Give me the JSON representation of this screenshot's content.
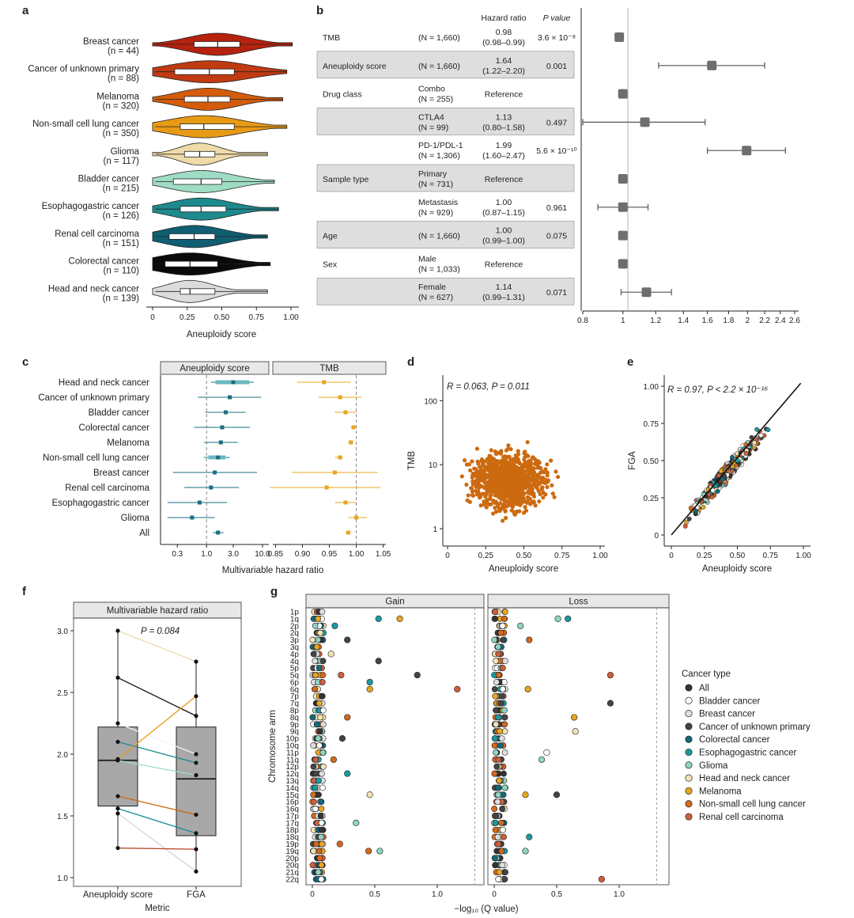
{
  "panel_labels": {
    "a": "a",
    "b": "b",
    "c": "c",
    "d": "d",
    "e": "e",
    "f": "f",
    "g": "g"
  },
  "panel_a": {
    "xlabel": "Aneuploidy score",
    "ticks": [
      "0",
      "0.25",
      "0.50",
      "0.75",
      "1.00"
    ],
    "groups": [
      {
        "name": "Breast cancer",
        "n": "(n = 44)",
        "color": "#b5220e",
        "q1": 0.3,
        "med": 0.47,
        "q3": 0.63
      },
      {
        "name": "Cancer of unknown primary",
        "n": "(n = 88)",
        "color": "#c03a12",
        "q1": 0.16,
        "med": 0.41,
        "q3": 0.59
      },
      {
        "name": "Melanoma",
        "n": "(n = 320)",
        "color": "#d35c0a",
        "q1": 0.23,
        "med": 0.4,
        "q3": 0.56
      },
      {
        "name": "Non-small cell lung cancer",
        "n": "(n = 350)",
        "color": "#e89a14",
        "q1": 0.2,
        "med": 0.37,
        "q3": 0.59
      },
      {
        "name": "Glioma",
        "n": "(n = 117)",
        "color": "#eedba8",
        "q1": 0.23,
        "med": 0.34,
        "q3": 0.45
      },
      {
        "name": "Bladder cancer",
        "n": "(n = 215)",
        "color": "#9fdcc4",
        "q1": 0.15,
        "med": 0.35,
        "q3": 0.5
      },
      {
        "name": "Esophagogastric cancer",
        "n": "(n = 126)",
        "color": "#1d8a8e",
        "q1": 0.2,
        "med": 0.35,
        "q3": 0.53
      },
      {
        "name": "Renal cell carcinoma",
        "n": "(n = 151)",
        "color": "#0f5e72",
        "q1": 0.12,
        "med": 0.3,
        "q3": 0.45
      },
      {
        "name": "Colorectal cancer",
        "n": "(n = 110)",
        "color": "#0a0a0a",
        "q1": 0.09,
        "med": 0.27,
        "q3": 0.47
      },
      {
        "name": "Head and neck cancer",
        "n": "(n = 139)",
        "color": "#dcdcdc",
        "q1": 0.2,
        "med": 0.27,
        "q3": 0.45
      }
    ]
  },
  "panel_b": {
    "col_headers": {
      "hr": "Hazard ratio",
      "p": "P value"
    },
    "rows": [
      {
        "var": "TMB",
        "sub": "",
        "n": "(N = 1,660)",
        "hr": "0.98",
        "ci": "(0.98–0.99)",
        "p": "3.6 × 10⁻⁸",
        "est": 0.98,
        "lo": 0.98,
        "hi": 0.99,
        "shade": false
      },
      {
        "var": "Aneuploidy score",
        "sub": "",
        "n": "(N = 1,660)",
        "hr": "1.64",
        "ci": "(1.22–2.20)",
        "p": "0.001",
        "est": 1.64,
        "lo": 1.22,
        "hi": 2.2,
        "shade": true
      },
      {
        "var": "Drug class",
        "sub": "Combo",
        "n": "(N = 255)",
        "hr": "Reference",
        "ci": "",
        "p": "",
        "est": 1,
        "lo": 1,
        "hi": 1,
        "shade": false
      },
      {
        "var": "",
        "sub": "CTLA4",
        "n": "(N = 99)",
        "hr": "1.13",
        "ci": "(0.80–1.58)",
        "p": "0.497",
        "est": 1.13,
        "lo": 0.8,
        "hi": 1.58,
        "shade": true
      },
      {
        "var": "",
        "sub": "PD-1/PDL-1",
        "n": "(N = 1,306)",
        "hr": "1.99",
        "ci": "(1.60–2.47)",
        "p": "5.6 × 10⁻¹⁰",
        "est": 1.99,
        "lo": 1.6,
        "hi": 2.47,
        "shade": false
      },
      {
        "var": "Sample type",
        "sub": "Primary",
        "n": "(N = 731)",
        "hr": "Reference",
        "ci": "",
        "p": "",
        "est": 1,
        "lo": 1,
        "hi": 1,
        "shade": true
      },
      {
        "var": "",
        "sub": "Metastasis",
        "n": "(N = 929)",
        "hr": "1.00",
        "ci": "(0.87–1.15)",
        "p": "0.961",
        "est": 1.0,
        "lo": 0.87,
        "hi": 1.15,
        "shade": false
      },
      {
        "var": "Age",
        "sub": "",
        "n": "(N = 1,660)",
        "hr": "1.00",
        "ci": "(0.99–1.00)",
        "p": "0.075",
        "est": 1.0,
        "lo": 0.99,
        "hi": 1.0,
        "shade": true
      },
      {
        "var": "Sex",
        "sub": "Male",
        "n": "(N = 1,033)",
        "hr": "Reference",
        "ci": "",
        "p": "",
        "est": 1,
        "lo": 1,
        "hi": 1,
        "shade": false
      },
      {
        "var": "",
        "sub": "Female",
        "n": "(N = 627)",
        "hr": "1.14",
        "ci": "(0.99–1.31)",
        "p": "0.071",
        "est": 1.14,
        "lo": 0.99,
        "hi": 1.31,
        "shade": true
      }
    ],
    "axis_ticks": [
      "0.8",
      "1",
      "1.2",
      "1.4",
      "1.6",
      "1.8",
      "2",
      "2.2",
      "2.4",
      "2.6"
    ]
  },
  "panel_c": {
    "facets": [
      "Aneuploidy score",
      "TMB"
    ],
    "xlabel": "Multivariable hazard ratio",
    "ticks_left": [
      "0.3",
      "1.0",
      "3.0",
      "10.0"
    ],
    "ticks_right": [
      "0.85",
      "0.90",
      "0.95",
      "1.00",
      "1.05"
    ],
    "rows": [
      {
        "name": "Head and neck cancer",
        "a": 3.0,
        "alo": 1.2,
        "ahi": 7.0,
        "t": 0.94,
        "tlo": 0.89,
        "thi": 0.99
      },
      {
        "name": "Cancer of unknown primary",
        "a": 2.6,
        "alo": 0.7,
        "ahi": 9.5,
        "t": 0.97,
        "tlo": 0.93,
        "thi": 1.01
      },
      {
        "name": "Bladder cancer",
        "a": 2.2,
        "alo": 0.95,
        "ahi": 5.0,
        "t": 0.98,
        "tlo": 0.96,
        "thi": 1.0
      },
      {
        "name": "Colorectal cancer",
        "a": 1.9,
        "alo": 0.6,
        "ahi": 6.0,
        "t": 0.995,
        "tlo": 0.99,
        "thi": 1.0
      },
      {
        "name": "Melanoma",
        "a": 1.8,
        "alo": 0.9,
        "ahi": 3.6,
        "t": 0.99,
        "tlo": 0.985,
        "thi": 0.995
      },
      {
        "name": "Non-small cell lung cancer",
        "a": 1.6,
        "alo": 0.9,
        "ahi": 2.6,
        "t": 0.97,
        "tlo": 0.96,
        "thi": 0.975
      },
      {
        "name": "Breast cancer",
        "a": 1.4,
        "alo": 0.25,
        "ahi": 8.0,
        "t": 0.96,
        "tlo": 0.88,
        "thi": 1.04
      },
      {
        "name": "Renal cell carcinoma",
        "a": 1.2,
        "alo": 0.4,
        "ahi": 3.8,
        "t": 0.945,
        "tlo": 0.84,
        "thi": 1.045
      },
      {
        "name": "Esophagogastric cancer",
        "a": 0.75,
        "alo": 0.2,
        "ahi": 2.3,
        "t": 0.98,
        "tlo": 0.96,
        "thi": 1.0
      },
      {
        "name": "Glioma",
        "a": 0.55,
        "alo": 0.2,
        "ahi": 1.4,
        "t": 1.0,
        "tlo": 0.985,
        "thi": 1.02
      },
      {
        "name": "All",
        "a": 1.6,
        "alo": 1.3,
        "ahi": 2.0,
        "t": 0.985,
        "tlo": 0.98,
        "thi": 0.99
      }
    ]
  },
  "panel_d": {
    "annotation": "R = 0.063, P = 0.011",
    "xlabel": "Aneuploidy score",
    "ylabel": "TMB",
    "xticks": [
      "0",
      "0.25",
      "0.50",
      "0.75",
      "1.00"
    ],
    "yticks": [
      "1",
      "10",
      "100"
    ]
  },
  "panel_e": {
    "annotation": "R = 0.97, P < 2.2 × 10⁻¹⁶",
    "xlabel": "Aneuploidy score",
    "ylabel": "FGA",
    "xticks": [
      "0",
      "0.25",
      "0.50",
      "0.75",
      "1.00"
    ],
    "yticks": [
      "0",
      "0.25",
      "0.50",
      "0.75",
      "1.00"
    ]
  },
  "panel_f": {
    "strip": "Multivariable hazard ratio",
    "annotation": "P = 0.084",
    "xlabel": "Metric",
    "categories": [
      "Aneuploidy score",
      "FGA"
    ],
    "yticks": [
      "1.0",
      "1.5",
      "2.0",
      "2.5",
      "3.0"
    ],
    "box_a": {
      "q1": 1.58,
      "med": 1.95,
      "q3": 2.22,
      "min": 1.24,
      "max": 3.0
    },
    "box_b": {
      "q1": 1.34,
      "med": 1.8,
      "q3": 2.22,
      "min": 1.05,
      "max": 2.75
    },
    "pairs": [
      {
        "a": 3.0,
        "b": 2.75,
        "color": "#f0dcae"
      },
      {
        "a": 2.62,
        "b": 2.31,
        "color": "#111111"
      },
      {
        "a": 2.25,
        "b": 2.0,
        "color": "#f5f5f5"
      },
      {
        "a": 2.1,
        "b": 1.93,
        "color": "#1d8a8e"
      },
      {
        "a": 1.96,
        "b": 2.47,
        "color": "#e89a14"
      },
      {
        "a": 1.95,
        "b": 1.83,
        "color": "#9fdcc4"
      },
      {
        "a": 1.66,
        "b": 1.51,
        "color": "#cc6a10"
      },
      {
        "a": 1.56,
        "b": 1.36,
        "color": "#138c94"
      },
      {
        "a": 1.52,
        "b": 1.05,
        "color": "#d6d6d6"
      },
      {
        "a": 1.24,
        "b": 1.23,
        "color": "#b5482a"
      }
    ]
  },
  "panel_g": {
    "facets": [
      "Gain",
      "Loss"
    ],
    "ylabel": "Chromosome arm",
    "xlabel": "−log₁₀ (Q value)",
    "xticks": [
      "0",
      "0.5",
      "1.0"
    ],
    "arms": [
      "1p",
      "1q",
      "2p",
      "2q",
      "3p",
      "3q",
      "4p",
      "4q",
      "5p",
      "5q",
      "6p",
      "6q",
      "7p",
      "7q",
      "8p",
      "8q",
      "9p",
      "9q",
      "10p",
      "10q",
      "11p",
      "11q",
      "12p",
      "12q",
      "13q",
      "14q",
      "15q",
      "16p",
      "16q",
      "17p",
      "17q",
      "18p",
      "18q",
      "19p",
      "19q",
      "20p",
      "20q",
      "21q",
      "22q"
    ],
    "gain_outliers": [
      {
        "arm": "1q",
        "v": 0.53,
        "c": "Esophagogastric cancer"
      },
      {
        "arm": "1q",
        "v": 0.7,
        "c": "Melanoma"
      },
      {
        "arm": "2p",
        "v": 0.18,
        "c": "Esophagogastric cancer"
      },
      {
        "arm": "3p",
        "v": 0.28,
        "c": "Cancer of unknown primary"
      },
      {
        "arm": "4p",
        "v": 0.15,
        "c": "Head and neck cancer"
      },
      {
        "arm": "4q",
        "v": 0.53,
        "c": "Cancer of unknown primary"
      },
      {
        "arm": "5q",
        "v": 0.84,
        "c": "Cancer of unknown primary"
      },
      {
        "arm": "5q",
        "v": 0.23,
        "c": "Renal cell carcinoma"
      },
      {
        "arm": "6p",
        "v": 0.46,
        "c": "Esophagogastric cancer"
      },
      {
        "arm": "6q",
        "v": 1.16,
        "c": "Renal cell carcinoma"
      },
      {
        "arm": "6q",
        "v": 0.46,
        "c": "Melanoma"
      },
      {
        "arm": "8q",
        "v": 0.28,
        "c": "Non-small cell lung cancer"
      },
      {
        "arm": "10p",
        "v": 0.24,
        "c": "Cancer of unknown primary"
      },
      {
        "arm": "11q",
        "v": 0.17,
        "c": "Non-small cell lung cancer"
      },
      {
        "arm": "12q",
        "v": 0.28,
        "c": "Esophagogastric cancer"
      },
      {
        "arm": "15q",
        "v": 0.46,
        "c": "Head and neck cancer"
      },
      {
        "arm": "17q",
        "v": 0.35,
        "c": "Glioma"
      },
      {
        "arm": "19p",
        "v": 0.22,
        "c": "Non-small cell lung cancer"
      },
      {
        "arm": "19q",
        "v": 0.45,
        "c": "Non-small cell lung cancer"
      },
      {
        "arm": "19q",
        "v": 0.54,
        "c": "Glioma"
      }
    ],
    "loss_outliers": [
      {
        "arm": "1q",
        "v": 0.51,
        "c": "Glioma"
      },
      {
        "arm": "1q",
        "v": 0.59,
        "c": "Esophagogastric cancer"
      },
      {
        "arm": "2p",
        "v": 0.21,
        "c": "Glioma"
      },
      {
        "arm": "3p",
        "v": 0.28,
        "c": "Non-small cell lung cancer"
      },
      {
        "arm": "5q",
        "v": 0.93,
        "c": "Renal cell carcinoma"
      },
      {
        "arm": "6q",
        "v": 0.27,
        "c": "Melanoma"
      },
      {
        "arm": "7q",
        "v": 0.93,
        "c": "Cancer of unknown primary"
      },
      {
        "arm": "8q",
        "v": 0.64,
        "c": "Melanoma"
      },
      {
        "arm": "9q",
        "v": 0.65,
        "c": "Head and neck cancer"
      },
      {
        "arm": "11p",
        "v": 0.42,
        "c": "Bladder cancer"
      },
      {
        "arm": "11q",
        "v": 0.38,
        "c": "Glioma"
      },
      {
        "arm": "15q",
        "v": 0.5,
        "c": "Cancer of unknown primary"
      },
      {
        "arm": "15q",
        "v": 0.25,
        "c": "Melanoma"
      },
      {
        "arm": "18q",
        "v": 0.28,
        "c": "Esophagogastric cancer"
      },
      {
        "arm": "19q",
        "v": 0.25,
        "c": "Glioma"
      },
      {
        "arm": "22q",
        "v": 0.86,
        "c": "Renal cell carcinoma"
      }
    ]
  },
  "legend": {
    "title": "Cancer type",
    "items": [
      {
        "label": "All",
        "color": "#333333"
      },
      {
        "label": "Bladder cancer",
        "color": "#ffffff"
      },
      {
        "label": "Breast cancer",
        "color": "#dedede"
      },
      {
        "label": "Cancer of unknown primary",
        "color": "#444444"
      },
      {
        "label": "Colorectal cancer",
        "color": "#146a7a"
      },
      {
        "label": "Esophagogastric cancer",
        "color": "#1a9aa0"
      },
      {
        "label": "Glioma",
        "color": "#8fd3c3"
      },
      {
        "label": "Head and neck cancer",
        "color": "#f3e2b3"
      },
      {
        "label": "Melanoma",
        "color": "#e8a520"
      },
      {
        "label": "Non-small cell lung cancer",
        "color": "#d2691e"
      },
      {
        "label": "Renal cell carcinoma",
        "color": "#cf5f3c"
      }
    ]
  }
}
